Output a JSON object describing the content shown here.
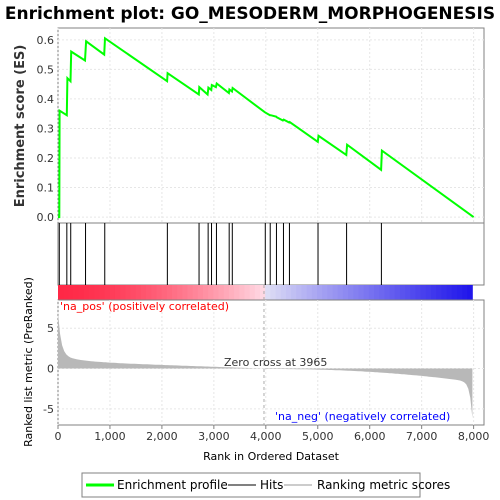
{
  "chart_data": {
    "type": "line",
    "title": "Enrichment plot: GO_MESODERM_MORPHOGENESIS",
    "xlabel": "Rank in Ordered Dataset",
    "es_ylabel": "Enrichment score (ES)",
    "metric_ylabel": "Ranked list metric (PreRanked)",
    "xlim": [
      0,
      8200
    ],
    "x_ticks": [
      0,
      1000,
      2000,
      3000,
      4000,
      5000,
      6000,
      7000,
      8000
    ],
    "x_tick_labels": [
      "0",
      "1,000",
      "2,000",
      "3,000",
      "4,000",
      "5,000",
      "6,000",
      "7,000",
      "8,000"
    ],
    "es_ylim": [
      -0.02,
      0.64
    ],
    "es_ticks": [
      0.0,
      0.1,
      0.2,
      0.3,
      0.4,
      0.5,
      0.6
    ],
    "es_tick_labels": [
      "0.0",
      "0.1",
      "0.2",
      "0.3",
      "0.4",
      "0.5",
      "0.6"
    ],
    "metric_ylim": [
      -7,
      8.5
    ],
    "metric_ticks": [
      -5,
      0,
      5
    ],
    "metric_tick_labels": [
      "-5",
      "0",
      "5"
    ],
    "grid": true,
    "series": [
      {
        "name": "Enrichment profile",
        "color": "#00ff00",
        "x": [
          0,
          25,
          30,
          170,
          180,
          240,
          255,
          520,
          540,
          890,
          905,
          2100,
          2110,
          2710,
          2720,
          2880,
          2895,
          2950,
          2960,
          3040,
          3055,
          3290,
          3300,
          3350,
          3360,
          3980,
          4000,
          4080,
          4095,
          4200,
          4210,
          4330,
          4345,
          4450,
          4460,
          5000,
          5015,
          5550,
          5565,
          6220,
          6235,
          8000
        ],
        "y": [
          0.0,
          0.0,
          0.36,
          0.345,
          0.47,
          0.46,
          0.56,
          0.53,
          0.595,
          0.55,
          0.605,
          0.46,
          0.487,
          0.415,
          0.44,
          0.415,
          0.438,
          0.43,
          0.447,
          0.44,
          0.452,
          0.42,
          0.432,
          0.425,
          0.437,
          0.355,
          0.353,
          0.345,
          0.345,
          0.34,
          0.338,
          0.327,
          0.33,
          0.32,
          0.322,
          0.255,
          0.275,
          0.21,
          0.245,
          0.16,
          0.225,
          0.0
        ]
      }
    ],
    "hits": [
      25,
      170,
      245,
      530,
      900,
      2105,
      2715,
      2890,
      2955,
      3050,
      3295,
      3355,
      3990,
      4085,
      4205,
      4340,
      4455,
      5005,
      5555,
      6225
    ],
    "hits_legend": "Hits",
    "metric_legend": "Ranking metric scores",
    "zero_cross": 3965,
    "zero_cross_label": "Zero cross at 3965",
    "pos_label": "'na_pos' (positively correlated)",
    "neg_label": "'na_neg' (negatively correlated)",
    "n_ranks": 7977,
    "colors": {
      "profile": "#00ff00",
      "hit": "#000000",
      "metric_fill": "#b8b8b8",
      "pos_text": "#ff0000",
      "neg_text": "#0000ff",
      "grid": "#e6e6e6",
      "dashed": "#aaaaaa"
    }
  }
}
